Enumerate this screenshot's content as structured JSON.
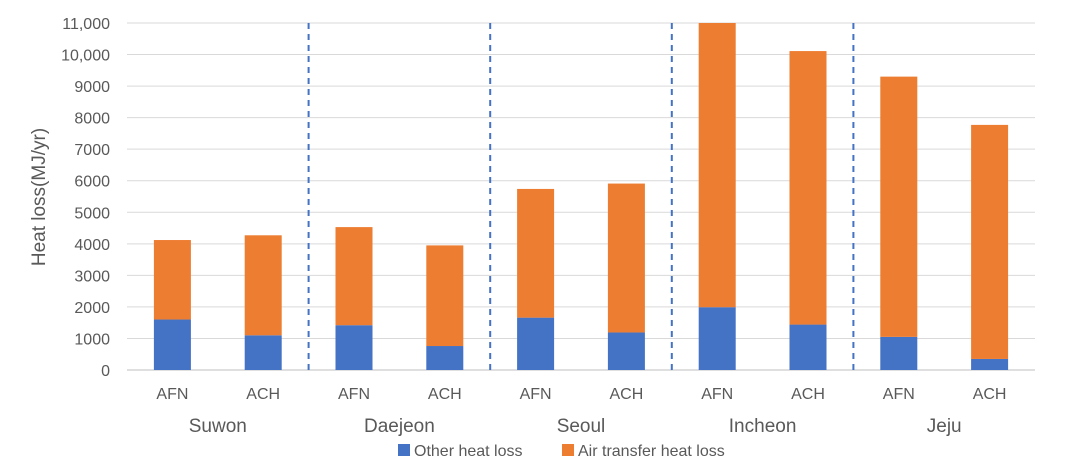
{
  "chart_data": {
    "type": "bar",
    "stacked": true,
    "ylabel": "Heat loss(MJ/yr)",
    "ylim": [
      0,
      11000
    ],
    "y_ticks": [
      "0",
      "1000",
      "2000",
      "3000",
      "4000",
      "5000",
      "6000",
      "7000",
      "8000",
      "9000",
      "10,000",
      "11,000"
    ],
    "grid": true,
    "legend_position": "bottom",
    "groups": [
      "Suwon",
      "Daejeon",
      "Seoul",
      "Incheon",
      "Jeju"
    ],
    "categories": [
      "AFN",
      "ACH",
      "AFN",
      "ACH",
      "AFN",
      "ACH",
      "AFN",
      "ACH",
      "AFN",
      "ACH"
    ],
    "series": [
      {
        "name": "Other heat loss",
        "color": "#4472C4",
        "values": [
          1600,
          1100,
          1420,
          760,
          1660,
          1190,
          1990,
          1440,
          1050,
          350
        ]
      },
      {
        "name": "Air transfer heat loss",
        "color": "#ED7D31",
        "values": [
          2520,
          3170,
          3110,
          3190,
          4080,
          4720,
          9010,
          8670,
          8250,
          7420
        ]
      }
    ]
  }
}
